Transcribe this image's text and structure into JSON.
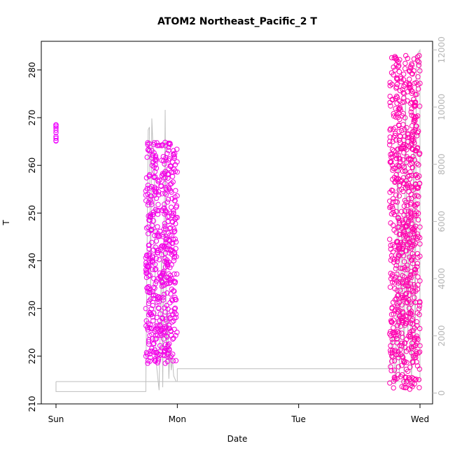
{
  "chart_data": {
    "type": "scatter",
    "title": "ATOM2 Northeast_Pacific_2 T",
    "xlabel": "Date",
    "ylabel": "T",
    "x_ticks": [
      "Sun",
      "Mon",
      "Tue",
      "Wed"
    ],
    "ylim": [
      210,
      286
    ],
    "y_ticks": [
      210,
      220,
      230,
      240,
      250,
      260,
      270,
      280
    ],
    "y2lim": [
      -380,
      12300
    ],
    "y2_ticks": [
      0,
      2000,
      4000,
      6000,
      8000,
      10000,
      12000
    ],
    "grid": false,
    "colors": {
      "points_start": "#ee00ff",
      "points_end": "#ff00aa",
      "secondary_line": "#bebebe",
      "right_axis": "#b5b5b5"
    },
    "series": [
      {
        "axis": "left",
        "kind": "points",
        "clusters": [
          {
            "x": [
              0.0,
              0.0
            ],
            "y": [
              265,
              268.5
            ],
            "n": 10
          },
          {
            "x": [
              0.74,
              1.0
            ],
            "y": [
              218.5,
              265
            ],
            "n": 520
          },
          {
            "x": [
              2.75,
              3.0
            ],
            "y": [
              213,
              283
            ],
            "n": 720
          }
        ]
      },
      {
        "axis": "right",
        "kind": "line",
        "x": [
          0.0,
          0.0,
          0.74,
          0.74,
          0.76,
          0.77,
          0.78,
          0.79,
          0.8,
          0.81,
          0.82,
          0.83,
          0.85,
          0.87,
          0.88,
          0.9,
          0.91,
          0.92,
          0.93,
          0.94,
          0.95,
          0.96,
          0.97,
          0.99,
          1.0,
          1.0,
          2.75,
          2.77,
          2.8,
          2.82,
          2.83,
          2.85,
          2.87,
          2.88,
          2.9,
          2.91,
          2.93,
          2.95,
          2.96,
          2.97,
          3.0,
          3.0,
          0.0,
          0.0
        ],
        "y": [
          400,
          50,
          50,
          300,
          9200,
          9300,
          3000,
          9600,
          8500,
          8400,
          2000,
          900,
          100,
          5000,
          200,
          9900,
          1000,
          3000,
          500,
          1500,
          800,
          1200,
          600,
          400,
          400,
          850,
          850,
          2000,
          300,
          9000,
          500,
          6000,
          300,
          10500,
          2000,
          7000,
          200,
          9800,
          1000,
          11800,
          12000,
          400,
          400,
          400
        ]
      }
    ]
  }
}
